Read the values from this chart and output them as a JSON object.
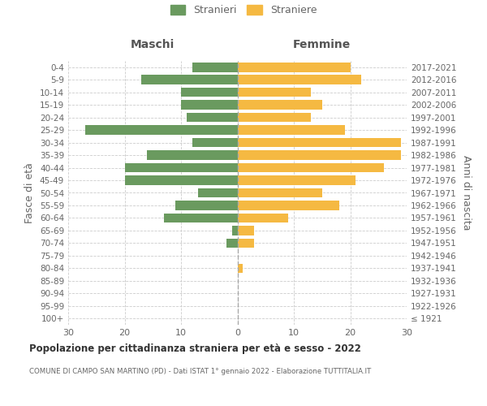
{
  "age_groups": [
    "100+",
    "95-99",
    "90-94",
    "85-89",
    "80-84",
    "75-79",
    "70-74",
    "65-69",
    "60-64",
    "55-59",
    "50-54",
    "45-49",
    "40-44",
    "35-39",
    "30-34",
    "25-29",
    "20-24",
    "15-19",
    "10-14",
    "5-9",
    "0-4"
  ],
  "birth_years": [
    "≤ 1921",
    "1922-1926",
    "1927-1931",
    "1932-1936",
    "1937-1941",
    "1942-1946",
    "1947-1951",
    "1952-1956",
    "1957-1961",
    "1962-1966",
    "1967-1971",
    "1972-1976",
    "1977-1981",
    "1982-1986",
    "1987-1991",
    "1992-1996",
    "1997-2001",
    "2002-2006",
    "2007-2011",
    "2012-2016",
    "2017-2021"
  ],
  "males": [
    0,
    0,
    0,
    0,
    0,
    0,
    2,
    1,
    13,
    11,
    7,
    20,
    20,
    16,
    8,
    27,
    9,
    10,
    10,
    17,
    8
  ],
  "females": [
    0,
    0,
    0,
    0,
    1,
    0,
    3,
    3,
    9,
    18,
    15,
    21,
    26,
    29,
    29,
    19,
    13,
    15,
    13,
    22,
    20
  ],
  "male_color": "#6a9a5f",
  "female_color": "#f5b942",
  "male_label": "Stranieri",
  "female_label": "Straniere",
  "title": "Popolazione per cittadinanza straniera per età e sesso - 2022",
  "subtitle": "COMUNE DI CAMPO SAN MARTINO (PD) - Dati ISTAT 1° gennaio 2022 - Elaborazione TUTTITALIA.IT",
  "left_header": "Maschi",
  "right_header": "Femmine",
  "yleft_label": "Fasce di età",
  "yright_label": "Anni di nascita",
  "xlim": 30,
  "background_color": "#ffffff",
  "grid_color": "#cccccc",
  "text_color": "#666666",
  "header_color": "#555555"
}
